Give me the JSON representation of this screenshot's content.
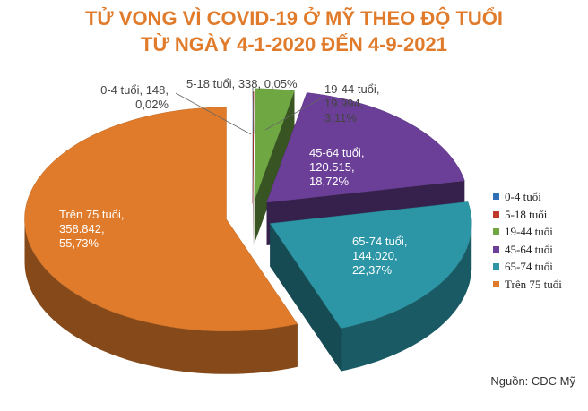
{
  "chart_data": {
    "type": "pie3d",
    "title": "TỬ VONG VÌ COVID-19 Ở MỸ THEO ĐỘ TUỔI\nTỪ NGÀY 4-1-2020 ĐẾN 4-9-2021",
    "categories": [
      "0-4 tuổi",
      "5-18 tuổi",
      "19-44 tuổi",
      "45-64 tuổi",
      "65-74 tuổi",
      "Trên 75 tuổi"
    ],
    "values": [
      148,
      338,
      19994,
      120515,
      144020,
      358842
    ],
    "value_labels": [
      "0-4 tuổi, 148,\n0,02%",
      "5-18 tuổi, 338, 0,05%",
      "19-44 tuổi,\n19.994,\n3,11%",
      "45-64 tuổi,\n120.515,\n18,72%",
      "65-74 tuổi,\n144.020,\n22,37%",
      "Trên 75 tuổi,\n358.842,\n55,73%"
    ],
    "colors": [
      "#2f6fb5",
      "#c0392b",
      "#6fa843",
      "#6b3f98",
      "#2c96a6",
      "#e07b2b"
    ],
    "legend": "right",
    "source": "Nguồn: CDC Mỹ"
  }
}
